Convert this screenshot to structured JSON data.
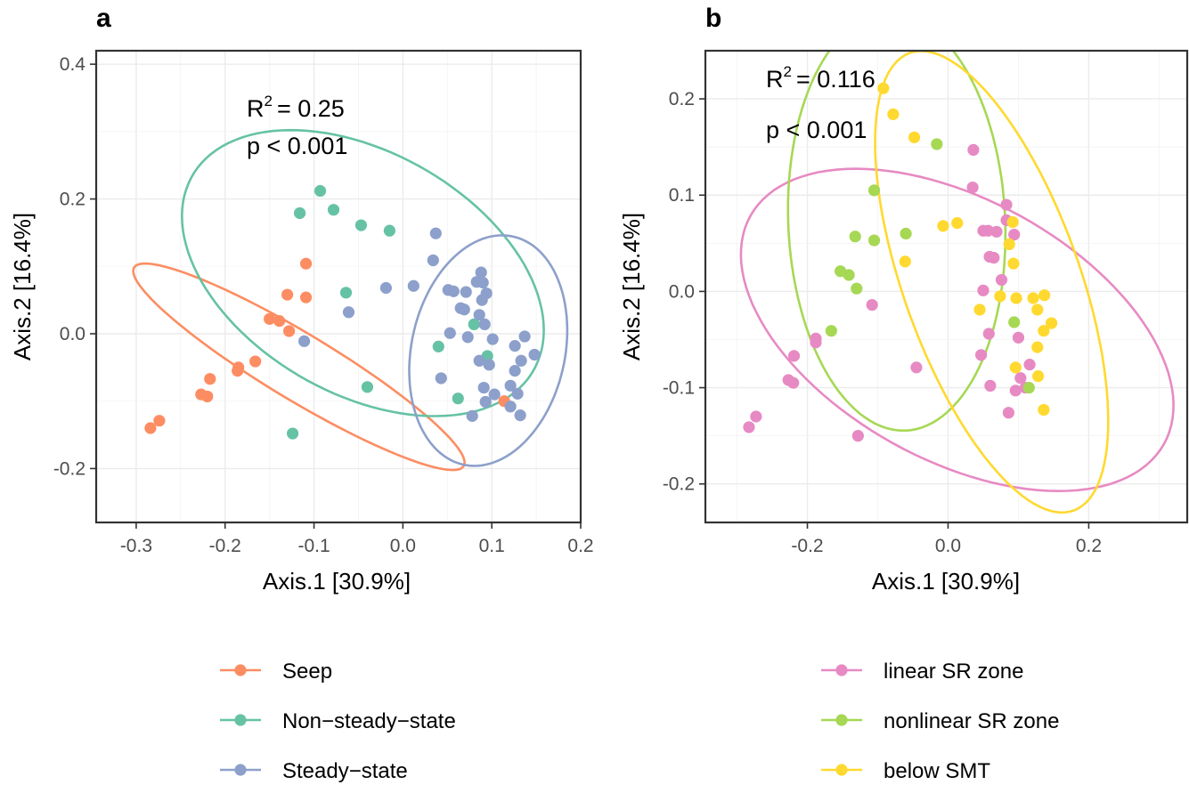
{
  "chart_data": [
    {
      "type": "scatter",
      "panel": "a",
      "xlabel": "Axis.1   [30.9%]",
      "ylabel": "Axis.2   [16.4%]",
      "xlim": [
        -0.345,
        0.2
      ],
      "ylim": [
        -0.28,
        0.42
      ],
      "xticks": [
        -0.3,
        -0.2,
        -0.1,
        0.0,
        0.1,
        0.2
      ],
      "xtick_labels": [
        "-0.3",
        "-0.2",
        "-0.1",
        "0.0",
        "0.1",
        "0.2"
      ],
      "yticks": [
        -0.2,
        0.0,
        0.2,
        0.4
      ],
      "ytick_labels": [
        "-0.2",
        "0.0",
        "0.2",
        "0.4"
      ],
      "grid": true,
      "annotation": {
        "r2_label": "R",
        "r2_sup": "2",
        "r2_value": "= 0.25",
        "p": "p < 0.001"
      },
      "series": [
        {
          "name": "Seep",
          "color": "#fc8d62",
          "points": [
            [
              -0.109,
              0.104
            ],
            [
              -0.13,
              0.058
            ],
            [
              -0.109,
              0.054
            ],
            [
              -0.15,
              0.022
            ],
            [
              -0.139,
              0.019
            ],
            [
              -0.128,
              0.004
            ],
            [
              -0.166,
              -0.041
            ],
            [
              -0.185,
              -0.05
            ],
            [
              -0.186,
              -0.055
            ],
            [
              -0.217,
              -0.067
            ],
            [
              -0.227,
              -0.09
            ],
            [
              -0.22,
              -0.093
            ],
            [
              -0.274,
              -0.129
            ],
            [
              -0.284,
              -0.14
            ],
            [
              0.114,
              -0.1
            ]
          ],
          "ellipse": {
            "cx": -0.117,
            "cy": -0.049,
            "rx": 0.237,
            "ry": 0.045,
            "angle": -39
          }
        },
        {
          "name": "Non−steady−state",
          "color": "#66c2a5",
          "points": [
            [
              -0.093,
              0.212
            ],
            [
              -0.116,
              0.179
            ],
            [
              -0.078,
              0.184
            ],
            [
              -0.047,
              0.161
            ],
            [
              -0.015,
              0.153
            ],
            [
              -0.064,
              0.061
            ],
            [
              0.04,
              -0.019
            ],
            [
              0.08,
              0.014
            ],
            [
              0.095,
              -0.033
            ],
            [
              -0.04,
              -0.079
            ],
            [
              0.062,
              -0.096
            ],
            [
              -0.124,
              -0.148
            ]
          ],
          "ellipse": {
            "cx": -0.045,
            "cy": 0.09,
            "rx": 0.246,
            "ry": 0.161,
            "angle": -48
          }
        },
        {
          "name": "Steady−state",
          "color": "#8da0cb",
          "points": [
            [
              0.037,
              0.149
            ],
            [
              0.034,
              0.109
            ],
            [
              0.012,
              0.071
            ],
            [
              -0.019,
              0.068
            ],
            [
              0.051,
              0.065
            ],
            [
              0.057,
              0.063
            ],
            [
              0.071,
              0.062
            ],
            [
              0.083,
              0.077
            ],
            [
              0.088,
              0.091
            ],
            [
              0.09,
              0.076
            ],
            [
              0.094,
              0.06
            ],
            [
              0.089,
              0.05
            ],
            [
              0.065,
              0.038
            ],
            [
              0.069,
              0.036
            ],
            [
              0.086,
              0.028
            ],
            [
              0.092,
              0.014
            ],
            [
              0.053,
              0.001
            ],
            [
              0.073,
              -0.005
            ],
            [
              0.101,
              -0.008
            ],
            [
              0.126,
              -0.018
            ],
            [
              0.137,
              -0.004
            ],
            [
              0.148,
              -0.031
            ],
            [
              0.133,
              -0.04
            ],
            [
              0.126,
              -0.055
            ],
            [
              0.097,
              -0.046
            ],
            [
              0.086,
              -0.04
            ],
            [
              0.043,
              -0.066
            ],
            [
              0.091,
              -0.08
            ],
            [
              0.103,
              -0.09
            ],
            [
              0.121,
              -0.077
            ],
            [
              0.129,
              -0.089
            ],
            [
              0.093,
              -0.101
            ],
            [
              0.121,
              -0.108
            ],
            [
              0.132,
              -0.121
            ],
            [
              0.078,
              -0.122
            ],
            [
              -0.061,
              0.032
            ],
            [
              -0.111,
              -0.011
            ]
          ],
          "ellipse": {
            "cx": 0.096,
            "cy": -0.025,
            "rx": 0.087,
            "ry": 0.172,
            "angle": -7
          }
        }
      ]
    },
    {
      "type": "scatter",
      "panel": "b",
      "xlabel": "Axis.1   [30.9%]",
      "ylabel": "Axis.2   [16.4%]",
      "xlim": [
        -0.345,
        0.34
      ],
      "ylim": [
        -0.24,
        0.25
      ],
      "xticks": [
        -0.2,
        0.0,
        0.2
      ],
      "xtick_labels": [
        "-0.2",
        "0.0",
        "0.2"
      ],
      "yticks": [
        -0.2,
        -0.1,
        0.0,
        0.1,
        0.2
      ],
      "ytick_labels": [
        "-0.2",
        "-0.1",
        "0.0",
        "0.1",
        "0.2"
      ],
      "grid": true,
      "annotation": {
        "r2_label": "R",
        "r2_sup": "2",
        "r2_value": "= 0.116",
        "p": "p < 0.001"
      },
      "series": [
        {
          "name": "linear SR zone",
          "color": "#e78ac3",
          "points": [
            [
              0.036,
              0.147
            ],
            [
              0.035,
              0.108
            ],
            [
              0.083,
              0.09
            ],
            [
              0.083,
              0.074
            ],
            [
              0.05,
              0.063
            ],
            [
              0.057,
              0.063
            ],
            [
              0.069,
              0.062
            ],
            [
              0.094,
              0.059
            ],
            [
              0.059,
              0.036
            ],
            [
              0.065,
              0.035
            ],
            [
              0.076,
              0.012
            ],
            [
              0.05,
              0.001
            ],
            [
              0.058,
              -0.044
            ],
            [
              0.1,
              -0.048
            ],
            [
              0.047,
              -0.066
            ],
            [
              -0.045,
              -0.079
            ],
            [
              0.116,
              -0.076
            ],
            [
              0.103,
              -0.09
            ],
            [
              0.06,
              -0.098
            ],
            [
              0.096,
              -0.103
            ],
            [
              0.11,
              -0.1
            ],
            [
              0.086,
              -0.126
            ],
            [
              -0.108,
              -0.014
            ],
            [
              -0.188,
              -0.049
            ],
            [
              -0.188,
              -0.053
            ],
            [
              -0.219,
              -0.067
            ],
            [
              -0.227,
              -0.092
            ],
            [
              -0.22,
              -0.095
            ],
            [
              -0.273,
              -0.13
            ],
            [
              -0.283,
              -0.141
            ],
            [
              -0.128,
              -0.15
            ]
          ],
          "ellipse": {
            "cx": 0.013,
            "cy": -0.04,
            "rx": 0.32,
            "ry": 0.142,
            "angle": -18
          }
        },
        {
          "name": "nonlinear SR zone",
          "color": "#a6d854",
          "points": [
            [
              -0.016,
              0.153
            ],
            [
              -0.105,
              0.105
            ],
            [
              -0.132,
              0.057
            ],
            [
              -0.105,
              0.053
            ],
            [
              -0.06,
              0.06
            ],
            [
              -0.153,
              0.021
            ],
            [
              -0.141,
              0.017
            ],
            [
              -0.13,
              0.003
            ],
            [
              -0.166,
              -0.041
            ],
            [
              0.094,
              -0.032
            ],
            [
              0.115,
              -0.1
            ]
          ],
          "ellipse": {
            "cx": -0.073,
            "cy": 0.072,
            "rx": 0.154,
            "ry": 0.217,
            "angle": 5
          }
        },
        {
          "name": "below SMT",
          "color": "#ffd92f",
          "points": [
            [
              -0.092,
              0.211
            ],
            [
              -0.078,
              0.184
            ],
            [
              -0.048,
              0.16
            ],
            [
              0.013,
              0.071
            ],
            [
              -0.007,
              0.068
            ],
            [
              0.092,
              0.072
            ],
            [
              0.087,
              0.049
            ],
            [
              0.093,
              0.029
            ],
            [
              -0.061,
              0.031
            ],
            [
              0.097,
              -0.007
            ],
            [
              0.074,
              -0.005
            ],
            [
              0.137,
              -0.004
            ],
            [
              0.121,
              -0.007
            ],
            [
              0.127,
              -0.019
            ],
            [
              0.045,
              -0.019
            ],
            [
              0.147,
              -0.033
            ],
            [
              0.136,
              -0.041
            ],
            [
              0.127,
              -0.058
            ],
            [
              0.096,
              -0.079
            ],
            [
              0.128,
              -0.088
            ],
            [
              0.136,
              -0.123
            ]
          ],
          "ellipse": {
            "cx": 0.062,
            "cy": 0.01,
            "rx": 0.266,
            "ry": 0.119,
            "angle": -61
          }
        }
      ]
    }
  ],
  "legend_a": [
    {
      "label": "Seep",
      "color": "#fc8d62"
    },
    {
      "label": "Non−steady−state",
      "color": "#66c2a5"
    },
    {
      "label": "Steady−state",
      "color": "#8da0cb"
    }
  ],
  "legend_b": [
    {
      "label": "linear SR zone",
      "color": "#e78ac3"
    },
    {
      "label": "nonlinear SR zone",
      "color": "#a6d854"
    },
    {
      "label": "below SMT",
      "color": "#ffd92f"
    }
  ]
}
